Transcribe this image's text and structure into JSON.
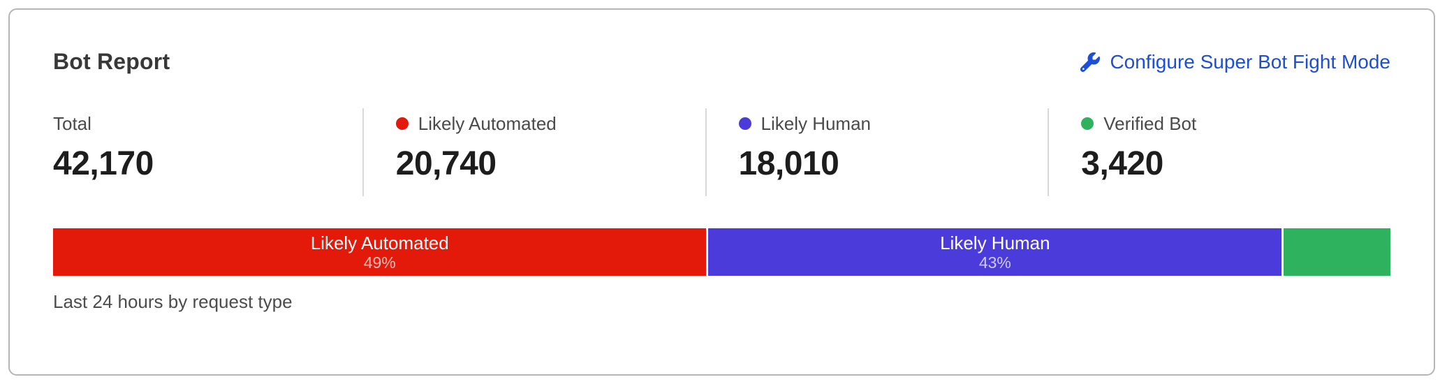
{
  "header": {
    "title": "Bot Report",
    "configure_link_label": "Configure Super Bot Fight Mode"
  },
  "stats": [
    {
      "label": "Total",
      "value": "42,170",
      "dot_color": null
    },
    {
      "label": "Likely Automated",
      "value": "20,740",
      "dot_color": "#e3190a"
    },
    {
      "label": "Likely Human",
      "value": "18,010",
      "dot_color": "#4c3bdb"
    },
    {
      "label": "Verified Bot",
      "value": "3,420",
      "dot_color": "#2fb25e"
    }
  ],
  "chart_data": {
    "type": "bar",
    "stacked": true,
    "title": "Bot Report",
    "total": 42170,
    "categories": [
      "Likely Automated",
      "Likely Human",
      "Verified Bot"
    ],
    "values": [
      20740,
      18010,
      3420
    ],
    "segments": [
      {
        "name": "Likely Automated",
        "value": 20740,
        "percent": 49,
        "label": "Likely Automated",
        "sublabel": "49%",
        "color": "#e3190a"
      },
      {
        "name": "Likely Human",
        "value": 18010,
        "percent": 43,
        "label": "Likely Human",
        "sublabel": "43%",
        "color": "#4c3bdb"
      },
      {
        "name": "Verified Bot",
        "value": 3420,
        "percent": 8,
        "label": "",
        "sublabel": "",
        "color": "#2fb25e"
      }
    ],
    "legend_position": "top",
    "xlabel": "",
    "ylabel": ""
  },
  "footer": {
    "caption": "Last 24 hours by request type"
  },
  "colors": {
    "link_blue": "#1d4ed8",
    "likely_automated_red": "#e3190a",
    "likely_human_indigo": "#4c3bdb",
    "verified_bot_green": "#2fb25e",
    "card_border": "#b5b5b5",
    "divider": "#d9d9d9"
  }
}
